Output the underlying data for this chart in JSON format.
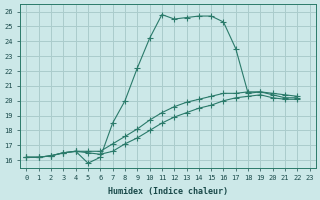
{
  "xlabel": "Humidex (Indice chaleur)",
  "bg_color": "#cce8e8",
  "grid_color": "#aacccc",
  "line_color": "#2a7a6a",
  "xlim": [
    -0.5,
    23.5
  ],
  "ylim": [
    15.5,
    26.5
  ],
  "xticks": [
    0,
    1,
    2,
    3,
    4,
    5,
    6,
    7,
    8,
    9,
    10,
    11,
    12,
    13,
    14,
    15,
    16,
    17,
    18,
    19,
    20,
    21,
    22,
    23
  ],
  "yticks": [
    16,
    17,
    18,
    19,
    20,
    21,
    22,
    23,
    24,
    25,
    26
  ],
  "curve1_x": [
    0,
    1,
    2,
    3,
    4,
    5,
    6,
    7,
    8,
    9,
    10,
    11,
    12,
    13,
    14,
    15,
    16,
    17,
    18,
    19,
    20,
    21,
    22
  ],
  "curve1_y": [
    16.2,
    16.2,
    16.3,
    16.5,
    16.6,
    15.8,
    16.2,
    18.5,
    20.0,
    22.2,
    24.2,
    25.8,
    25.5,
    25.6,
    25.7,
    25.7,
    25.3,
    23.5,
    20.5,
    20.6,
    20.4,
    20.2,
    20.2
  ],
  "curve2_x": [
    0,
    1,
    2,
    3,
    4,
    5,
    6,
    7,
    8,
    9,
    10,
    11,
    12,
    13,
    14,
    15,
    16,
    17,
    18,
    19,
    20,
    21,
    22
  ],
  "curve2_y": [
    16.2,
    16.2,
    16.3,
    16.5,
    16.6,
    16.6,
    16.6,
    17.1,
    17.6,
    18.1,
    18.7,
    19.2,
    19.6,
    19.9,
    20.1,
    20.3,
    20.5,
    20.5,
    20.6,
    20.6,
    20.5,
    20.4,
    20.3
  ],
  "curve3_x": [
    0,
    1,
    2,
    3,
    4,
    5,
    6,
    7,
    8,
    9,
    10,
    11,
    12,
    13,
    14,
    15,
    16,
    17,
    18,
    19,
    20,
    21,
    22
  ],
  "curve3_y": [
    16.2,
    16.2,
    16.3,
    16.5,
    16.6,
    16.5,
    16.4,
    16.6,
    17.1,
    17.5,
    18.0,
    18.5,
    18.9,
    19.2,
    19.5,
    19.7,
    20.0,
    20.2,
    20.3,
    20.4,
    20.2,
    20.1,
    20.1
  ]
}
